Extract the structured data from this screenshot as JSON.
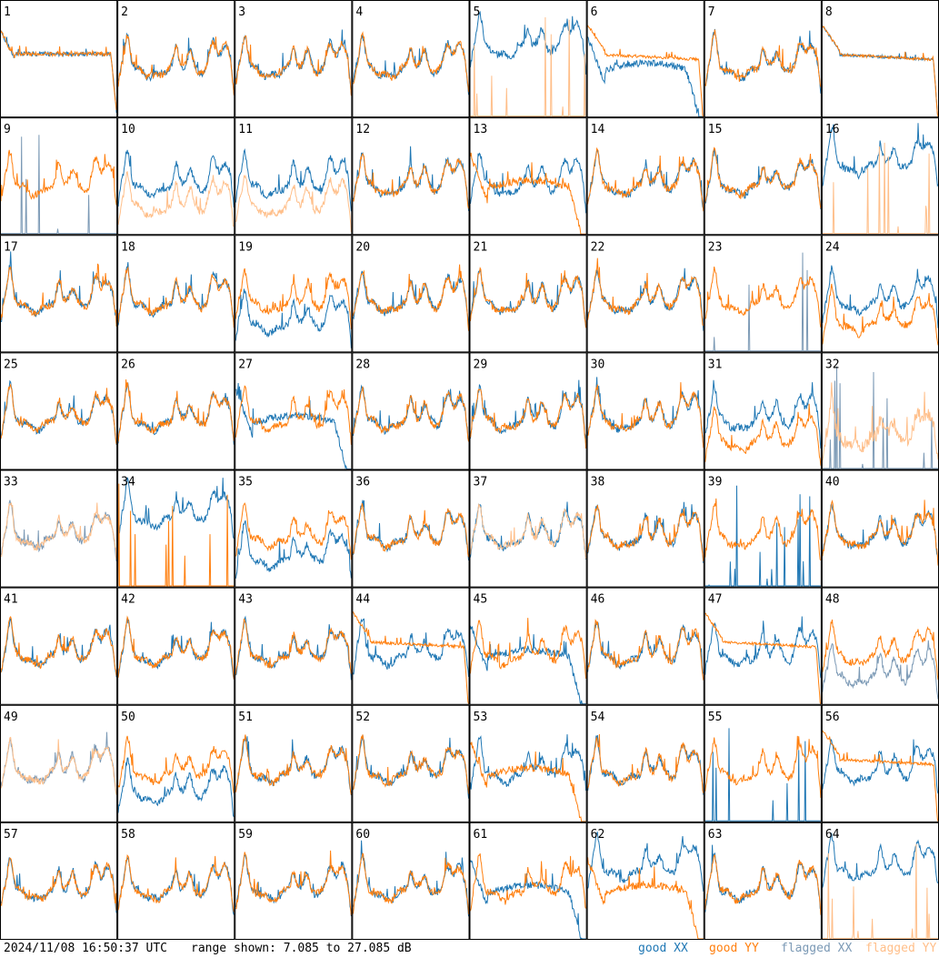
{
  "timestamp": "2024/11/08 16:50:37 UTC",
  "range_label": "range shown: 7.085 to 27.085 dB",
  "legend": [
    {
      "label": "good XX",
      "color": "#1f77b4"
    },
    {
      "label": "good YY",
      "color": "#ff7f0e"
    },
    {
      "label": "flagged XX",
      "color": "#7b99b5"
    },
    {
      "label": "flagged YY",
      "color": "#ffbf8a"
    }
  ],
  "colors": {
    "good_xx": "#1f77b4",
    "good_yy": "#ff7f0e",
    "flagged_xx": "#7b99b5",
    "flagged_yy": "#ffbf8a",
    "grid": "#000000"
  },
  "chart_data": {
    "type": "line",
    "title": "",
    "xlabel": "",
    "ylabel": "",
    "ylim": [
      7.085,
      27.085
    ],
    "grid": {
      "rows": 8,
      "cols": 8
    },
    "panels": [
      {
        "id": "1",
        "xx": "plateau",
        "yy": "plateau",
        "xx_flag": false,
        "yy_flag": false
      },
      {
        "id": "2",
        "xx": "normal",
        "yy": "normal",
        "xx_flag": false,
        "yy_flag": false
      },
      {
        "id": "3",
        "xx": "normal",
        "yy": "normal",
        "xx_flag": false,
        "yy_flag": false
      },
      {
        "id": "4",
        "xx": "normal",
        "yy": "normal",
        "xx_flag": false,
        "yy_flag": false
      },
      {
        "id": "5",
        "xx": "high",
        "yy": "spikes",
        "xx_flag": false,
        "yy_flag": true
      },
      {
        "id": "6",
        "xx": "drop",
        "yy": "flat",
        "xx_flag": false,
        "yy_flag": false
      },
      {
        "id": "7",
        "xx": "normal",
        "yy": "normal",
        "xx_flag": false,
        "yy_flag": false
      },
      {
        "id": "8",
        "xx": "flat",
        "yy": "flat",
        "xx_flag": false,
        "yy_flag": false
      },
      {
        "id": "9",
        "xx": "spikes",
        "yy": "normal",
        "xx_flag": true,
        "yy_flag": false
      },
      {
        "id": "10",
        "xx": "normal",
        "yy": "low",
        "xx_flag": false,
        "yy_flag": true
      },
      {
        "id": "11",
        "xx": "normal",
        "yy": "low",
        "xx_flag": false,
        "yy_flag": true
      },
      {
        "id": "12",
        "xx": "normal",
        "yy": "normal",
        "xx_flag": false,
        "yy_flag": false
      },
      {
        "id": "13",
        "xx": "normal",
        "yy": "drop",
        "xx_flag": false,
        "yy_flag": false
      },
      {
        "id": "14",
        "xx": "normal",
        "yy": "normal",
        "xx_flag": false,
        "yy_flag": false
      },
      {
        "id": "15",
        "xx": "normal",
        "yy": "normal",
        "xx_flag": false,
        "yy_flag": false
      },
      {
        "id": "16",
        "xx": "high",
        "yy": "spikes",
        "xx_flag": false,
        "yy_flag": true
      },
      {
        "id": "17",
        "xx": "normal",
        "yy": "normal",
        "xx_flag": false,
        "yy_flag": false
      },
      {
        "id": "18",
        "xx": "normal",
        "yy": "normal",
        "xx_flag": false,
        "yy_flag": false
      },
      {
        "id": "19",
        "xx": "low",
        "yy": "normal",
        "xx_flag": false,
        "yy_flag": false
      },
      {
        "id": "20",
        "xx": "normal",
        "yy": "normal",
        "xx_flag": false,
        "yy_flag": false
      },
      {
        "id": "21",
        "xx": "normal",
        "yy": "normal",
        "xx_flag": false,
        "yy_flag": false
      },
      {
        "id": "22",
        "xx": "normal",
        "yy": "normal",
        "xx_flag": false,
        "yy_flag": false
      },
      {
        "id": "23",
        "xx": "spikes",
        "yy": "normal",
        "xx_flag": true,
        "yy_flag": false
      },
      {
        "id": "24",
        "xx": "normal",
        "yy": "low",
        "xx_flag": false,
        "yy_flag": false
      },
      {
        "id": "25",
        "xx": "normal",
        "yy": "normal",
        "xx_flag": false,
        "yy_flag": false
      },
      {
        "id": "26",
        "xx": "normal",
        "yy": "normal",
        "xx_flag": false,
        "yy_flag": false
      },
      {
        "id": "27",
        "xx": "drop",
        "yy": "normal",
        "xx_flag": false,
        "yy_flag": false
      },
      {
        "id": "28",
        "xx": "normal",
        "yy": "normal",
        "xx_flag": false,
        "yy_flag": false
      },
      {
        "id": "29",
        "xx": "normal",
        "yy": "normal",
        "xx_flag": false,
        "yy_flag": false
      },
      {
        "id": "30",
        "xx": "normal",
        "yy": "normal",
        "xx_flag": false,
        "yy_flag": false
      },
      {
        "id": "31",
        "xx": "normal",
        "yy": "low",
        "xx_flag": false,
        "yy_flag": false
      },
      {
        "id": "32",
        "xx": "spikes",
        "yy": "noisy",
        "xx_flag": true,
        "yy_flag": true
      },
      {
        "id": "33",
        "xx": "normal",
        "yy": "normal",
        "xx_flag": true,
        "yy_flag": true
      },
      {
        "id": "34",
        "xx": "high",
        "yy": "spikes",
        "xx_flag": false,
        "yy_flag": false
      },
      {
        "id": "35",
        "xx": "low",
        "yy": "normal",
        "xx_flag": false,
        "yy_flag": false
      },
      {
        "id": "36",
        "xx": "normal",
        "yy": "normal",
        "xx_flag": false,
        "yy_flag": false
      },
      {
        "id": "37",
        "xx": "normal",
        "yy": "normal",
        "xx_flag": false,
        "yy_flag": true
      },
      {
        "id": "38",
        "xx": "normal",
        "yy": "normal",
        "xx_flag": false,
        "yy_flag": false
      },
      {
        "id": "39",
        "xx": "spikes",
        "yy": "normal",
        "xx_flag": false,
        "yy_flag": false
      },
      {
        "id": "40",
        "xx": "normal",
        "yy": "normal",
        "xx_flag": false,
        "yy_flag": false
      },
      {
        "id": "41",
        "xx": "normal",
        "yy": "normal",
        "xx_flag": false,
        "yy_flag": false
      },
      {
        "id": "42",
        "xx": "normal",
        "yy": "normal",
        "xx_flag": false,
        "yy_flag": false
      },
      {
        "id": "43",
        "xx": "normal",
        "yy": "normal",
        "xx_flag": false,
        "yy_flag": false
      },
      {
        "id": "44",
        "xx": "normal",
        "yy": "flat",
        "xx_flag": false,
        "yy_flag": false
      },
      {
        "id": "45",
        "xx": "drop",
        "yy": "normal",
        "xx_flag": false,
        "yy_flag": false
      },
      {
        "id": "46",
        "xx": "normal",
        "yy": "normal",
        "xx_flag": false,
        "yy_flag": false
      },
      {
        "id": "47",
        "xx": "normal",
        "yy": "flat",
        "xx_flag": false,
        "yy_flag": false
      },
      {
        "id": "48",
        "xx": "low",
        "yy": "normal",
        "xx_flag": true,
        "yy_flag": false
      },
      {
        "id": "49",
        "xx": "normal",
        "yy": "normal",
        "xx_flag": true,
        "yy_flag": true
      },
      {
        "id": "50",
        "xx": "low",
        "yy": "normal",
        "xx_flag": false,
        "yy_flag": false
      },
      {
        "id": "51",
        "xx": "normal",
        "yy": "normal",
        "xx_flag": false,
        "yy_flag": false
      },
      {
        "id": "52",
        "xx": "normal",
        "yy": "normal",
        "xx_flag": false,
        "yy_flag": false
      },
      {
        "id": "53",
        "xx": "normal",
        "yy": "drop",
        "xx_flag": false,
        "yy_flag": false
      },
      {
        "id": "54",
        "xx": "normal",
        "yy": "normal",
        "xx_flag": false,
        "yy_flag": false
      },
      {
        "id": "55",
        "xx": "spikes",
        "yy": "normal",
        "xx_flag": false,
        "yy_flag": false
      },
      {
        "id": "56",
        "xx": "normal",
        "yy": "flat",
        "xx_flag": false,
        "yy_flag": false
      },
      {
        "id": "57",
        "xx": "normal",
        "yy": "normal",
        "xx_flag": false,
        "yy_flag": false
      },
      {
        "id": "58",
        "xx": "normal",
        "yy": "normal",
        "xx_flag": false,
        "yy_flag": false
      },
      {
        "id": "59",
        "xx": "normal",
        "yy": "normal",
        "xx_flag": false,
        "yy_flag": false
      },
      {
        "id": "60",
        "xx": "normal",
        "yy": "normal",
        "xx_flag": false,
        "yy_flag": false
      },
      {
        "id": "61",
        "xx": "drop",
        "yy": "normal",
        "xx_flag": false,
        "yy_flag": false
      },
      {
        "id": "62",
        "xx": "high",
        "yy": "drop",
        "xx_flag": false,
        "yy_flag": false
      },
      {
        "id": "63",
        "xx": "normal",
        "yy": "normal",
        "xx_flag": false,
        "yy_flag": false
      },
      {
        "id": "64",
        "xx": "high",
        "yy": "spikes",
        "xx_flag": false,
        "yy_flag": true
      }
    ]
  }
}
